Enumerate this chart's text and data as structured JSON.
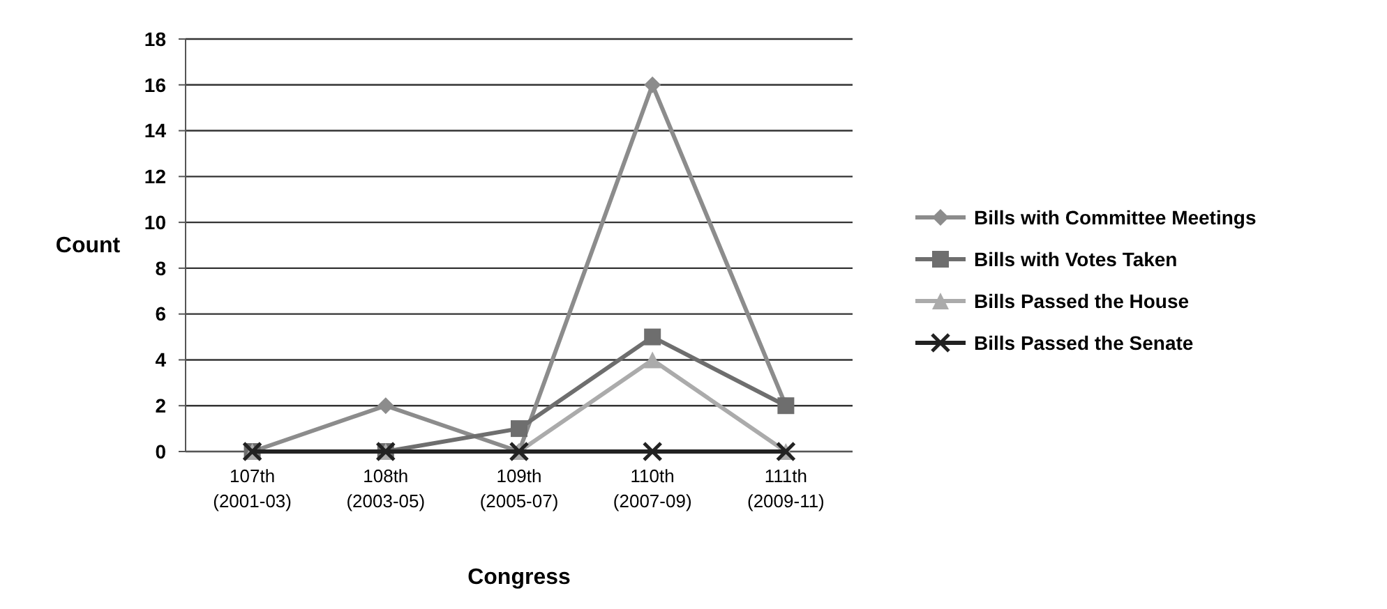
{
  "chart_data": {
    "type": "line",
    "xlabel": "Congress",
    "ylabel": "Count",
    "categories": [
      "107th\n(2001-03)",
      "108th\n(2003-05)",
      "109th\n(2005-07)",
      "110th\n(2007-09)",
      "111th\n(2009-11)"
    ],
    "series": [
      {
        "name": "Bills with Committee Meetings",
        "color": "#8c8c8c",
        "marker": "diamond",
        "values": [
          0,
          2,
          0,
          16,
          2
        ]
      },
      {
        "name": "Bills with Votes Taken",
        "color": "#6e6e6e",
        "marker": "square",
        "values": [
          0,
          0,
          1,
          5,
          2
        ]
      },
      {
        "name": "Bills Passed the House",
        "color": "#ababab",
        "marker": "triangle",
        "values": [
          0,
          0,
          0,
          4,
          0
        ]
      },
      {
        "name": "Bills Passed the Senate",
        "color": "#222222",
        "marker": "cross",
        "values": [
          0,
          0,
          0,
          0,
          0
        ]
      }
    ],
    "ylim": [
      0,
      18
    ],
    "yticks": [
      0,
      2,
      4,
      6,
      8,
      10,
      12,
      14,
      16,
      18
    ],
    "grid": "y",
    "legend": "right",
    "line_style": "solid"
  }
}
